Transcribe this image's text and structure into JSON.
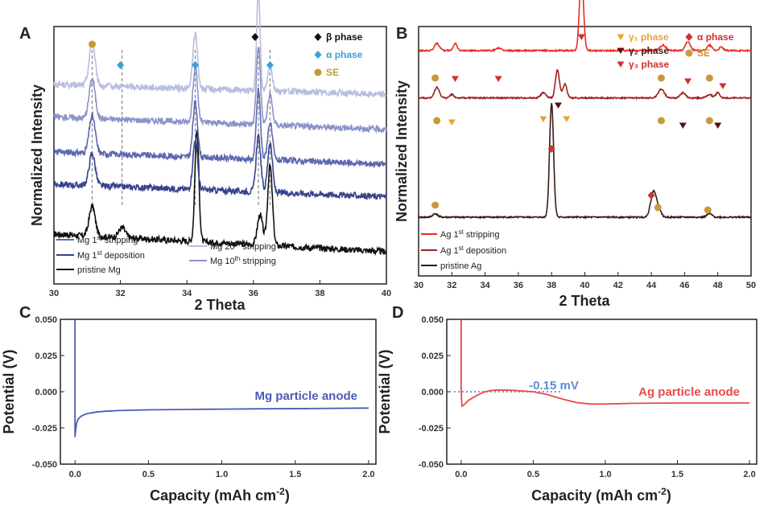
{
  "chart_data": [
    {
      "panel": "A",
      "type": "line",
      "xlabel": "2 Theta",
      "ylabel": "Normalized Intensity",
      "xlim": [
        30,
        40
      ],
      "xticks": [
        30,
        32,
        34,
        36,
        38,
        40
      ],
      "series": [
        {
          "name": "pristine Mg",
          "color": "#111111",
          "offset": 0,
          "peaks": [
            [
              31.15,
              0.09,
              0.12
            ],
            [
              32.05,
              0.1,
              0.04
            ],
            [
              34.3,
              0.06,
              0.45
            ],
            [
              36.2,
              0.08,
              0.12
            ],
            [
              36.5,
              0.07,
              0.32
            ]
          ],
          "slope": -0.07
        },
        {
          "name": "Mg 1st deposition",
          "color": "#35428c",
          "offset": 0.2,
          "peaks": [
            [
              31.15,
              0.09,
              0.13
            ],
            [
              34.25,
              0.07,
              0.2
            ],
            [
              36.15,
              0.07,
              0.22
            ],
            [
              36.5,
              0.07,
              0.2
            ]
          ],
          "slope": -0.05
        },
        {
          "name": "Mg 1st stripping",
          "color": "#5b68b0",
          "offset": 0.33,
          "peaks": [
            [
              31.15,
              0.09,
              0.15
            ],
            [
              34.25,
              0.07,
              0.22
            ],
            [
              36.15,
              0.06,
              0.28
            ],
            [
              36.5,
              0.07,
              0.15
            ]
          ],
          "slope": -0.05
        },
        {
          "name": "Mg 10th stripping",
          "color": "#8a92c9",
          "offset": 0.47,
          "peaks": [
            [
              31.15,
              0.09,
              0.16
            ],
            [
              34.25,
              0.07,
              0.22
            ],
            [
              36.15,
              0.06,
              0.32
            ],
            [
              36.5,
              0.07,
              0.12
            ]
          ],
          "slope": -0.05
        },
        {
          "name": "Mg 20th stripping",
          "color": "#b8bde0",
          "offset": 0.6,
          "peaks": [
            [
              31.15,
              0.09,
              0.17
            ],
            [
              34.25,
              0.07,
              0.22
            ],
            [
              36.15,
              0.05,
              0.4
            ],
            [
              36.5,
              0.07,
              0.1
            ]
          ],
          "slope": -0.04
        }
      ],
      "markers": [
        {
          "phase": "SE",
          "x": 31.15
        },
        {
          "phase": "alpha",
          "x": 32.0
        },
        {
          "phase": "alpha",
          "x": 34.25
        },
        {
          "phase": "beta",
          "x": 36.05
        },
        {
          "phase": "alpha",
          "x": 36.5
        }
      ],
      "dashed_lines": [
        31.15,
        32.05,
        34.25,
        36.15,
        36.5
      ],
      "legend_series": [
        {
          "parts": [
            "Mg 1",
            "st",
            " stripping"
          ],
          "color": "#5b68b0"
        },
        {
          "parts": [
            "Mg 1",
            "st",
            " deposition"
          ],
          "color": "#35428c"
        },
        {
          "parts": [
            "pristine Mg",
            "",
            ""
          ],
          "color": "#111111"
        },
        {
          "parts": [
            "Mg 20",
            "th",
            " stripping"
          ],
          "color": "#b8bde0"
        },
        {
          "parts": [
            "Mg 10",
            "th",
            " stripping"
          ],
          "color": "#8a92c9"
        }
      ],
      "legend_markers": [
        {
          "label": "β phase",
          "color": "#111111",
          "shape": "diamond"
        },
        {
          "label": "α phase",
          "color": "#3aa0d8",
          "shape": "diamond"
        },
        {
          "label": "SE",
          "color": "#c8993a",
          "shape": "circle"
        }
      ]
    },
    {
      "panel": "B",
      "type": "line",
      "xlabel": "2 Theta",
      "ylabel": "Normalized Intensity",
      "xlim": [
        30,
        50
      ],
      "xticks": [
        30,
        32,
        34,
        36,
        38,
        40,
        42,
        44,
        46,
        48,
        50
      ],
      "series": [
        {
          "name": "pristine Ag",
          "color": "#3a1a1a",
          "offset": 0,
          "peaks": [
            [
              31.0,
              0.15,
              0.02
            ],
            [
              38.0,
              0.12,
              0.65
            ],
            [
              44.15,
              0.18,
              0.15
            ],
            [
              44.5,
              0.12,
              0.03
            ],
            [
              47.5,
              0.15,
              0.02
            ]
          ],
          "slope": 0
        },
        {
          "name": "Ag 1st deposition",
          "color": "#a02020",
          "offset": 0.68,
          "peaks": [
            [
              31.1,
              0.15,
              0.06
            ],
            [
              32.0,
              0.12,
              0.02
            ],
            [
              37.5,
              0.15,
              0.03
            ],
            [
              38.35,
              0.12,
              0.16
            ],
            [
              38.8,
              0.12,
              0.08
            ],
            [
              44.6,
              0.18,
              0.05
            ],
            [
              45.9,
              0.15,
              0.03
            ],
            [
              47.5,
              0.15,
              0.02
            ],
            [
              48.0,
              0.12,
              0.03
            ]
          ],
          "slope": 0
        },
        {
          "name": "Ag 1st stripping",
          "color": "#e82a1e",
          "offset": 0.95,
          "peaks": [
            [
              31.1,
              0.15,
              0.04
            ],
            [
              32.2,
              0.12,
              0.04
            ],
            [
              34.8,
              0.15,
              0.015
            ],
            [
              39.8,
              0.12,
              0.44
            ],
            [
              44.7,
              0.18,
              0.03
            ],
            [
              46.2,
              0.15,
              0.05
            ],
            [
              47.5,
              0.15,
              0.03
            ],
            [
              48.2,
              0.12,
              0.02
            ]
          ],
          "slope": 0
        }
      ],
      "markers": [
        {
          "phase": "SE",
          "x": 31.0,
          "row": 0
        },
        {
          "phase": "alpha",
          "x": 38.0,
          "row": 0
        },
        {
          "phase": "alpha",
          "x": 44.0,
          "row": 0
        },
        {
          "phase": "SE",
          "x": 44.4,
          "row": 0
        },
        {
          "phase": "SE",
          "x": 47.4,
          "row": 0
        },
        {
          "phase": "SE",
          "x": 31.1,
          "row": 1
        },
        {
          "phase": "gamma1",
          "x": 32.0,
          "row": 1
        },
        {
          "phase": "gamma1",
          "x": 37.5,
          "row": 1
        },
        {
          "phase": "gamma2",
          "x": 38.4,
          "row": 1
        },
        {
          "phase": "gamma1",
          "x": 38.9,
          "row": 1
        },
        {
          "phase": "SE",
          "x": 44.6,
          "row": 1
        },
        {
          "phase": "gamma2",
          "x": 45.9,
          "row": 1
        },
        {
          "phase": "SE",
          "x": 47.5,
          "row": 1
        },
        {
          "phase": "gamma2",
          "x": 48.0,
          "row": 1
        },
        {
          "phase": "SE",
          "x": 31.0,
          "row": 2
        },
        {
          "phase": "gamma3",
          "x": 32.2,
          "row": 2
        },
        {
          "phase": "gamma3",
          "x": 34.8,
          "row": 2
        },
        {
          "phase": "gamma3",
          "x": 39.8,
          "row": 2
        },
        {
          "phase": "SE",
          "x": 44.6,
          "row": 2
        },
        {
          "phase": "gamma3",
          "x": 46.2,
          "row": 2
        },
        {
          "phase": "SE",
          "x": 47.5,
          "row": 2
        },
        {
          "phase": "gamma3",
          "x": 48.3,
          "row": 2
        }
      ],
      "legend_series": [
        {
          "parts": [
            "Ag 1",
            "st",
            " stripping"
          ],
          "color": "#e82a1e"
        },
        {
          "parts": [
            "Ag 1",
            "st",
            " deposition"
          ],
          "color": "#a02020"
        },
        {
          "parts": [
            "pristine Ag",
            "",
            ""
          ],
          "color": "#3a1a1a"
        }
      ],
      "legend_markers": [
        {
          "label": "γ₁ phase",
          "color": "#f0a030",
          "shape": "triangle"
        },
        {
          "label": "γ₂ phase",
          "color": "#5a1010",
          "shape": "triangle"
        },
        {
          "label": "γ₃ phase",
          "color": "#d03030",
          "shape": "triangle"
        },
        {
          "label": "α phase",
          "color": "#d03030",
          "shape": "diamond"
        },
        {
          "label": "SE",
          "color": "#c8993a",
          "shape": "circle"
        }
      ]
    },
    {
      "panel": "C",
      "type": "line",
      "xlabel": "Capacity (mAh cm",
      "xlabel_sup": "-2",
      "xlabel_end": ")",
      "ylabel": "Potential (V)",
      "xlim": [
        -0.1,
        2.05
      ],
      "ylim": [
        -0.05,
        0.05
      ],
      "xticks": [
        0.0,
        0.5,
        1.0,
        1.5,
        2.0
      ],
      "yticks": [
        -0.05,
        -0.025,
        0.0,
        0.025,
        0.05
      ],
      "xtick_labels": [
        "0.0",
        "0.5",
        "1.0",
        "1.5",
        "2.0"
      ],
      "ytick_labels": [
        "-0.050",
        "-0.025",
        "0.000",
        "0.025",
        "0.050"
      ],
      "series": [
        {
          "name": "Mg particle anode",
          "color": "#4a5bb5",
          "x": [
            0.0,
            0.0,
            0.0,
            0.005,
            0.01,
            0.02,
            0.04,
            0.07,
            0.1,
            0.15,
            0.2,
            0.3,
            0.5,
            0.8,
            1.0,
            1.3,
            1.6,
            2.0
          ],
          "y": [
            0.05,
            0.02,
            -0.031,
            -0.026,
            -0.022,
            -0.019,
            -0.017,
            -0.0155,
            -0.0148,
            -0.014,
            -0.0135,
            -0.013,
            -0.0125,
            -0.0122,
            -0.012,
            -0.0118,
            -0.0116,
            -0.0113
          ]
        }
      ],
      "annotation": {
        "text": "Mg particle anode",
        "color": "#4a5bb5"
      }
    },
    {
      "panel": "D",
      "type": "line",
      "xlabel": "Capacity (mAh cm",
      "xlabel_sup": "-2",
      "xlabel_end": ")",
      "ylabel": "Potential (V)",
      "xlim": [
        -0.1,
        2.05
      ],
      "ylim": [
        -0.05,
        0.05
      ],
      "xticks": [
        0.0,
        0.5,
        1.0,
        1.5,
        2.0
      ],
      "yticks": [
        -0.05,
        -0.025,
        0.0,
        0.025,
        0.05
      ],
      "xtick_labels": [
        "0.0",
        "0.5",
        "1.0",
        "1.5",
        "2.0"
      ],
      "ytick_labels": [
        "-0.050",
        "-0.025",
        "0.000",
        "0.025",
        "0.050"
      ],
      "series": [
        {
          "name": "Ag particle anode",
          "color": "#e84a4a",
          "x": [
            0.0,
            0.0,
            0.005,
            0.02,
            0.05,
            0.1,
            0.15,
            0.2,
            0.25,
            0.35,
            0.5,
            0.6,
            0.7,
            0.8,
            0.9,
            1.0,
            1.2,
            1.5,
            1.8,
            2.0
          ],
          "y": [
            0.05,
            0.0,
            -0.01,
            -0.009,
            -0.006,
            -0.003,
            -0.0005,
            0.0008,
            0.0012,
            0.001,
            0.0,
            -0.002,
            -0.005,
            -0.0075,
            -0.0085,
            -0.0085,
            -0.008,
            -0.0078,
            -0.0078,
            -0.0078
          ]
        }
      ],
      "reference_line": {
        "y": 0.0,
        "x_end": 0.7,
        "color": "#5b8fd0"
      },
      "annotation": {
        "text": "Ag particle anode",
        "color": "#e84a4a"
      },
      "ref_annotation": {
        "text": "-0.15 mV",
        "color": "#5b8fd0"
      }
    }
  ]
}
